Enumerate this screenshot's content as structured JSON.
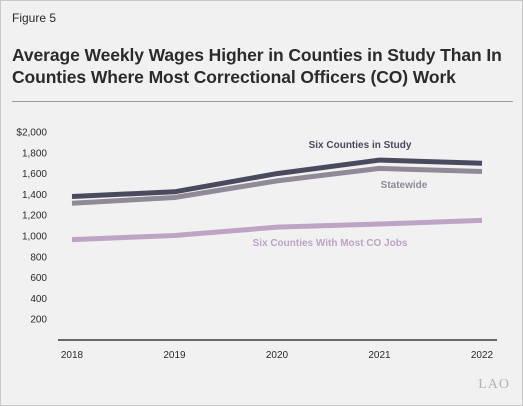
{
  "figure_label": "Figure 5",
  "title": "Average Weekly Wages Higher in Counties in Study Than In Counties Where Most Correctional Officers (CO) Work",
  "watermark": "LAO",
  "colors": {
    "six_counties_in_study": "#4a4a5e",
    "statewide": "#8f8a96",
    "six_counties_with_most_co_jobs": "#bda3c4",
    "axis": "#3a3a3a",
    "background": "#f1f1f2"
  },
  "chart_data": {
    "type": "line",
    "title": "",
    "xlabel": "",
    "ylabel": "",
    "x": [
      "2018",
      "2019",
      "2020",
      "2021",
      "2022"
    ],
    "ylim": [
      0,
      2000
    ],
    "y_ticks": [
      "$2,000",
      "1,800",
      "1,600",
      "1,400",
      "1,200",
      "1,000",
      "800",
      "600",
      "400",
      "200"
    ],
    "y_tick_values": [
      2000,
      1800,
      1600,
      1400,
      1200,
      1000,
      800,
      600,
      400,
      200
    ],
    "grid": false,
    "legend": "inline labels",
    "series": [
      {
        "name": "Six Counties in Study",
        "key": "six_counties_in_study",
        "values": [
          1380,
          1425,
          1600,
          1730,
          1700
        ]
      },
      {
        "name": "Statewide",
        "key": "statewide",
        "values": [
          1315,
          1370,
          1530,
          1650,
          1620
        ]
      },
      {
        "name": "Six Counties With Most CO Jobs",
        "key": "six_counties_with_most_co_jobs",
        "values": [
          965,
          1005,
          1085,
          1115,
          1150
        ]
      }
    ]
  }
}
